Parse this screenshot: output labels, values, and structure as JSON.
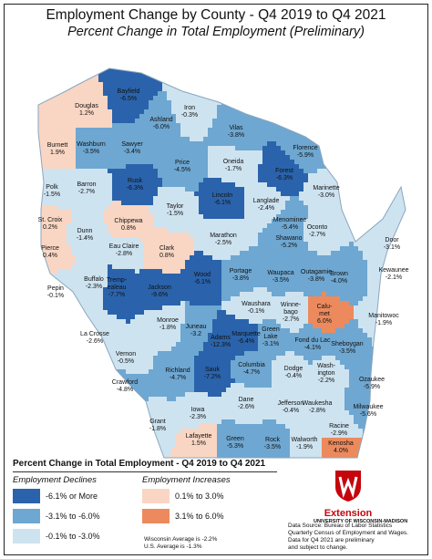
{
  "title": "Employment Change by County - Q4 2019 to Q4 2021",
  "subtitle": "Percent Change in Total Employment (Preliminary)",
  "colors": {
    "decline_strong": "#2a63ab",
    "decline_moderate": "#6ea7d1",
    "decline_mild": "#cee3f0",
    "increase_mild": "#f9d6c3",
    "increase_strong": "#ec8a5d",
    "lake": "#ffffff"
  },
  "counties": [
    {
      "name": "Douglas",
      "value": "1.2%",
      "cls": "increase_mild"
    },
    {
      "name": "Bayfield",
      "value": "-6.5%",
      "cls": "decline_strong"
    },
    {
      "name": "Iron",
      "value": "-0.3%",
      "cls": "decline_mild"
    },
    {
      "name": "Ashland",
      "value": "-6.0%",
      "cls": "decline_moderate"
    },
    {
      "name": "Vilas",
      "value": "-3.8%",
      "cls": "decline_moderate"
    },
    {
      "name": "Florence",
      "value": "-5.9%",
      "cls": "decline_moderate"
    },
    {
      "name": "Burnett",
      "value": "1.9%",
      "cls": "increase_mild"
    },
    {
      "name": "Washburn",
      "value": "-3.5%",
      "cls": "decline_moderate"
    },
    {
      "name": "Sawyer",
      "value": "-3.4%",
      "cls": "decline_moderate"
    },
    {
      "name": "Price",
      "value": "-4.5%",
      "cls": "decline_moderate"
    },
    {
      "name": "Oneida",
      "value": "-1.7%",
      "cls": "decline_mild"
    },
    {
      "name": "Forest",
      "value": "-6.3%",
      "cls": "decline_strong"
    },
    {
      "name": "Marinette",
      "value": "-3.0%",
      "cls": "decline_mild"
    },
    {
      "name": "Polk",
      "value": "-1.5%",
      "cls": "decline_mild"
    },
    {
      "name": "Barron",
      "value": "-2.7%",
      "cls": "decline_mild"
    },
    {
      "name": "Rusk",
      "value": "-6.3%",
      "cls": "decline_strong"
    },
    {
      "name": "Lincoln",
      "value": "-6.1%",
      "cls": "decline_strong"
    },
    {
      "name": "Langlade",
      "value": "-2.4%",
      "cls": "decline_mild"
    },
    {
      "name": "Taylor",
      "value": "-1.5%",
      "cls": "decline_mild"
    },
    {
      "name": "Menominee",
      "value": "-5.4%",
      "cls": "decline_moderate"
    },
    {
      "name": "Oconto",
      "value": "-2.7%",
      "cls": "decline_mild"
    },
    {
      "name": "St. Croix",
      "value": "0.2%",
      "cls": "increase_mild"
    },
    {
      "name": "Dunn",
      "value": "-1.4%",
      "cls": "decline_mild"
    },
    {
      "name": "Chippewa",
      "value": "0.8%",
      "cls": "increase_mild"
    },
    {
      "name": "Marathon",
      "value": "-2.5%",
      "cls": "decline_mild"
    },
    {
      "name": "Shawano",
      "value": "-5.2%",
      "cls": "decline_moderate"
    },
    {
      "name": "Door",
      "value": "-3.1%",
      "cls": "decline_mild"
    },
    {
      "name": "Pierce",
      "value": "0.4%",
      "cls": "increase_mild"
    },
    {
      "name": "Eau Claire",
      "value": "-2.8%",
      "cls": "decline_mild"
    },
    {
      "name": "Clark",
      "value": "0.8%",
      "cls": "increase_mild"
    },
    {
      "name": "Kewaunee",
      "value": "-2.1%",
      "cls": "decline_mild"
    },
    {
      "name": "Pepin",
      "value": "-0.1%",
      "cls": "decline_mild"
    },
    {
      "name": "Buffalo",
      "value": "-2.3%",
      "cls": "decline_mild"
    },
    {
      "name": "Trempealeau",
      "label": [
        "Tremp-",
        "ealeau"
      ],
      "value": "-7.7%",
      "cls": "decline_strong"
    },
    {
      "name": "Jackson",
      "value": "-9.6%",
      "cls": "decline_strong"
    },
    {
      "name": "Wood",
      "value": "-6.1%",
      "cls": "decline_strong"
    },
    {
      "name": "Portage",
      "value": "-3.8%",
      "cls": "decline_moderate"
    },
    {
      "name": "Waupaca",
      "value": "-3.5%",
      "cls": "decline_moderate"
    },
    {
      "name": "Outagamie",
      "value": "-3.8%",
      "cls": "decline_moderate"
    },
    {
      "name": "Brown",
      "value": "-4.0%",
      "cls": "decline_moderate"
    },
    {
      "name": "Manitowoc",
      "value": "-1.9%",
      "cls": "decline_mild"
    },
    {
      "name": "Monroe",
      "value": "-1.8%",
      "cls": "decline_mild"
    },
    {
      "name": "Waushara",
      "value": "-0.1%",
      "cls": "decline_mild"
    },
    {
      "name": "Winnebago",
      "label": [
        "Winne-",
        "bago"
      ],
      "value": "-2.7%",
      "cls": "decline_mild"
    },
    {
      "name": "Calumet",
      "label": [
        "Calu-",
        "met"
      ],
      "value": "6.0%",
      "cls": "increase_strong"
    },
    {
      "name": "La Crosse",
      "value": "-2.6%",
      "cls": "decline_mild"
    },
    {
      "name": "Juneau",
      "value": "-3.2",
      "cls": "decline_moderate"
    },
    {
      "name": "Adams",
      "value": "-12.3%",
      "cls": "decline_strong"
    },
    {
      "name": "Marquette",
      "value": "-6.4%",
      "cls": "decline_strong"
    },
    {
      "name": "Green Lake",
      "label": [
        "Green",
        "Lake"
      ],
      "value": "-3.1%",
      "cls": "decline_moderate"
    },
    {
      "name": "Fond du Lac",
      "value": "-4.1%",
      "cls": "decline_moderate"
    },
    {
      "name": "Sheboygan",
      "value": "-3.5%",
      "cls": "decline_moderate"
    },
    {
      "name": "Vernon",
      "value": "-0.5%",
      "cls": "decline_mild"
    },
    {
      "name": "Richland",
      "value": "-4.7%",
      "cls": "decline_moderate"
    },
    {
      "name": "Sauk",
      "value": "-7.2%",
      "cls": "decline_strong"
    },
    {
      "name": "Columbia",
      "value": "-4.7%",
      "cls": "decline_moderate"
    },
    {
      "name": "Dodge",
      "value": "-0.4%",
      "cls": "decline_mild"
    },
    {
      "name": "Washington",
      "label": [
        "Wash-",
        "ington"
      ],
      "value": "-2.2%",
      "cls": "decline_mild"
    },
    {
      "name": "Ozaukee",
      "value": "-5.9%",
      "cls": "decline_moderate"
    },
    {
      "name": "Crawford",
      "value": "-4.8%",
      "cls": "decline_moderate"
    },
    {
      "name": "Dane",
      "value": "-2.6%",
      "cls": "decline_mild"
    },
    {
      "name": "Jefferson",
      "value": "-0.4%",
      "cls": "decline_mild"
    },
    {
      "name": "Waukesha",
      "value": "-2.8%",
      "cls": "decline_mild"
    },
    {
      "name": "Milwaukee",
      "value": "-5.6%",
      "cls": "decline_moderate"
    },
    {
      "name": "Iowa",
      "value": "-2.3%",
      "cls": "decline_mild"
    },
    {
      "name": "Grant",
      "value": "-1.8%",
      "cls": "decline_mild"
    },
    {
      "name": "Lafayette",
      "value": "1.5%",
      "cls": "increase_mild"
    },
    {
      "name": "Green",
      "value": "-5.3%",
      "cls": "decline_moderate"
    },
    {
      "name": "Rock",
      "value": "-3.5%",
      "cls": "decline_moderate"
    },
    {
      "name": "Walworth",
      "value": "-1.9%",
      "cls": "decline_mild"
    },
    {
      "name": "Racine",
      "value": "-2.9%",
      "cls": "decline_mild"
    },
    {
      "name": "Kenosha",
      "value": "4.0%",
      "cls": "increase_strong"
    }
  ],
  "legend": {
    "title": "Percent Change in Total Employment - Q4 2019 to Q4 2021",
    "declines_heading": "Employment Declines",
    "increases_heading": "Employment Increases",
    "declines": [
      {
        "label": "-6.1% or More",
        "cls": "decline_strong"
      },
      {
        "label": "-3.1% to -6.0%",
        "cls": "decline_moderate"
      },
      {
        "label": "-0.1% to -3.0%",
        "cls": "decline_mild"
      }
    ],
    "increases": [
      {
        "label": "0.1% to 3.0%",
        "cls": "increase_mild"
      },
      {
        "label": "3.1% to 6.0%",
        "cls": "increase_strong"
      }
    ]
  },
  "averages": {
    "wisconsin": "Wisconsin Average is -2.2%",
    "us": "U.S. Average is -1.3%"
  },
  "logo": {
    "brand": "Extension",
    "university": "UNIVERSITY OF WISCONSIN-MADISON"
  },
  "source_note": [
    "Data Source: Bureau of Labor Statistics",
    "Quarterly Census of Employment and Wages.",
    "Data for Q4 2021 are preliminary",
    "and subject to change."
  ]
}
